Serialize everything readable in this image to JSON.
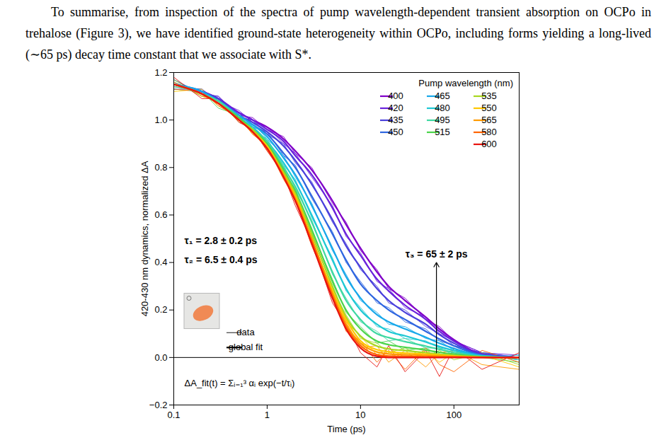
{
  "paragraph": "To summarise, from inspection of the spectra of pump wavelength-dependent transient absorption on OCPo in trehalose (Figure 3), we have identified ground-state heterogeneity within OCPo, including forms yielding a long-lived (∼65 ps) decay time constant that we associate with S*.",
  "chart_data": {
    "type": "line",
    "x_label": "Time (ps)",
    "y_label": "420-430 nm dynamics, normalized ΔA",
    "log": "x",
    "xlim": [
      0.1,
      500
    ],
    "xticks": [
      0.1,
      1,
      10,
      100
    ],
    "ylim": [
      -0.2,
      1.2
    ],
    "yticks": [
      {
        "value": -0.2,
        "label": "−0.2"
      },
      {
        "value": 0,
        "label": "0.0"
      },
      0.2,
      0.4,
      0.6,
      0.8,
      {
        "value": 1,
        "label": "1.0"
      },
      1.2
    ],
    "legend": "top-right",
    "legend_title": "Pump wavelength (nm)",
    "line_legend": [
      "data",
      "global fit"
    ],
    "x": [
      0.1,
      0.2,
      0.3,
      0.5,
      0.7,
      1,
      1.5,
      2,
      3,
      5,
      7,
      10,
      15,
      20,
      30,
      50,
      70,
      100,
      200,
      500
    ],
    "series": [
      {
        "name": "400",
        "color": "#8000c8",
        "values": [
          1.15,
          1.12,
          1.09,
          1.03,
          1.0,
          0.97,
          0.92,
          0.87,
          0.79,
          0.66,
          0.56,
          0.46,
          0.36,
          0.3,
          0.24,
          0.17,
          0.12,
          0.075,
          0.015,
          0
        ],
        "data": [
          1.17,
          1.11,
          1.1,
          1.02,
          1.01,
          0.96,
          0.93,
          0.86,
          0.8,
          0.65,
          0.57,
          0.45,
          0.37,
          0.29,
          0.25,
          0.16,
          0.13,
          0.07,
          0.02,
          0.0
        ]
      },
      {
        "name": "420",
        "color": "#6a22dc",
        "values": [
          1.15,
          1.12,
          1.09,
          1.03,
          1.0,
          0.96,
          0.91,
          0.85,
          0.77,
          0.63,
          0.52,
          0.43,
          0.33,
          0.28,
          0.22,
          0.16,
          0.11,
          0.069,
          0.014,
          0
        ],
        "data": [
          1.13,
          1.13,
          1.08,
          1.04,
          0.99,
          0.97,
          0.9,
          0.86,
          0.76,
          0.64,
          0.51,
          0.44,
          0.32,
          0.29,
          0.21,
          0.17,
          0.1,
          0.07,
          0.02,
          0.01
        ]
      },
      {
        "name": "435",
        "color": "#4a40dc",
        "values": [
          1.15,
          1.12,
          1.09,
          1.02,
          0.99,
          0.95,
          0.89,
          0.83,
          0.73,
          0.58,
          0.47,
          0.38,
          0.29,
          0.24,
          0.19,
          0.14,
          0.096,
          0.06,
          0.012,
          0
        ],
        "data": [
          1.16,
          1.11,
          1.1,
          1.01,
          1.0,
          0.94,
          0.9,
          0.82,
          0.74,
          0.57,
          0.48,
          0.37,
          0.3,
          0.23,
          0.2,
          0.13,
          0.1,
          0.05,
          0.02,
          -0.01
        ]
      },
      {
        "name": "450",
        "color": "#2f66e0",
        "values": [
          1.15,
          1.12,
          1.08,
          1.02,
          0.98,
          0.94,
          0.86,
          0.8,
          0.68,
          0.52,
          0.41,
          0.31,
          0.24,
          0.2,
          0.16,
          0.11,
          0.078,
          0.049,
          0.01,
          0
        ],
        "data": [
          1.14,
          1.13,
          1.07,
          1.03,
          0.97,
          0.95,
          0.85,
          0.81,
          0.67,
          0.53,
          0.4,
          0.32,
          0.23,
          0.21,
          0.15,
          0.12,
          0.07,
          0.05,
          0.02,
          0.0
        ]
      },
      {
        "name": "465",
        "color": "#18a8ea",
        "values": [
          1.15,
          1.12,
          1.08,
          1.02,
          0.98,
          0.93,
          0.84,
          0.77,
          0.64,
          0.46,
          0.34,
          0.25,
          0.18,
          0.15,
          0.12,
          0.085,
          0.06,
          0.038,
          0.008,
          0
        ],
        "data": [
          1.17,
          1.11,
          1.09,
          1.01,
          0.99,
          0.92,
          0.85,
          0.76,
          0.65,
          0.45,
          0.35,
          0.24,
          0.19,
          0.14,
          0.13,
          0.08,
          0.07,
          0.03,
          0.01,
          -0.01
        ]
      },
      {
        "name": "480",
        "color": "#1ec8d4",
        "values": [
          1.15,
          1.11,
          1.08,
          1.01,
          0.97,
          0.91,
          0.82,
          0.74,
          0.6,
          0.41,
          0.29,
          0.2,
          0.14,
          0.11,
          0.091,
          0.065,
          0.046,
          0.029,
          0.006,
          0
        ],
        "data": [
          1.13,
          1.12,
          1.07,
          1.02,
          0.96,
          0.92,
          0.81,
          0.75,
          0.59,
          0.42,
          0.28,
          0.21,
          0.13,
          0.12,
          0.08,
          0.07,
          0.04,
          0.03,
          0.0,
          0.01
        ]
      },
      {
        "name": "495",
        "color": "#3ed8a2",
        "values": [
          1.15,
          1.11,
          1.08,
          1.01,
          0.96,
          0.91,
          0.8,
          0.72,
          0.57,
          0.36,
          0.24,
          0.16,
          0.1,
          0.084,
          0.067,
          0.048,
          0.034,
          0.021,
          0.004,
          0
        ],
        "data": [
          1.16,
          1.1,
          1.09,
          1.0,
          0.97,
          0.9,
          0.81,
          0.71,
          0.58,
          0.35,
          0.25,
          0.15,
          0.11,
          0.07,
          0.08,
          0.04,
          0.04,
          0.01,
          0.01,
          -0.01
        ]
      },
      {
        "name": "515",
        "color": "#4cd44c",
        "values": [
          1.15,
          1.11,
          1.07,
          1.01,
          0.96,
          0.9,
          0.79,
          0.7,
          0.54,
          0.32,
          0.2,
          0.12,
          0.069,
          0.054,
          0.043,
          0.031,
          0.022,
          0.014,
          0.003,
          0
        ],
        "data": [
          1.14,
          1.12,
          1.05,
          1.02,
          0.95,
          0.91,
          0.78,
          0.71,
          0.53,
          0.33,
          0.19,
          0.13,
          0.06,
          0.07,
          0.03,
          0.04,
          0.01,
          0.02,
          0.0,
          -0.02
        ]
      },
      {
        "name": "535",
        "color": "#a8d820",
        "values": [
          1.15,
          1.11,
          1.07,
          1.0,
          0.96,
          0.89,
          0.78,
          0.69,
          0.52,
          0.3,
          0.17,
          0.09,
          0.048,
          0.036,
          0.029,
          0.02,
          0.014,
          0.009,
          0.002,
          0
        ],
        "data": [
          1.17,
          1.1,
          1.08,
          0.99,
          0.97,
          0.88,
          0.79,
          0.68,
          0.53,
          0.29,
          0.18,
          0.08,
          0.06,
          0.02,
          0.04,
          0.0,
          0.03,
          -0.01,
          0.02,
          -0.03
        ]
      },
      {
        "name": "550",
        "color": "#ffc800",
        "values": [
          1.15,
          1.11,
          1.07,
          1.0,
          0.95,
          0.89,
          0.77,
          0.68,
          0.5,
          0.28,
          0.16,
          0.07,
          0.033,
          0.024,
          0.019,
          0.014,
          0.01,
          0.006,
          0.001,
          0
        ],
        "data": [
          1.12,
          1.13,
          1.06,
          1.01,
          0.94,
          0.9,
          0.76,
          0.69,
          0.49,
          0.29,
          0.15,
          0.09,
          0.01,
          0.04,
          0.0,
          0.03,
          -0.02,
          0.02,
          0.01,
          -0.04
        ]
      },
      {
        "name": "565",
        "color": "#ff9a00",
        "values": [
          1.15,
          1.11,
          1.07,
          1.0,
          0.95,
          0.88,
          0.77,
          0.67,
          0.5,
          0.27,
          0.14,
          0.06,
          0.023,
          0.015,
          0.012,
          0.009,
          0.006,
          0.004,
          0.001,
          0
        ],
        "data": [
          1.16,
          1.1,
          1.08,
          1.0,
          0.96,
          0.87,
          0.78,
          0.66,
          0.51,
          0.26,
          0.15,
          0.04,
          0.05,
          -0.02,
          0.03,
          -0.04,
          0.02,
          0.03,
          -0.03,
          -0.05
        ]
      },
      {
        "name": "580",
        "color": "#ff6400",
        "values": [
          1.15,
          1.11,
          1.07,
          1.0,
          0.95,
          0.88,
          0.76,
          0.66,
          0.49,
          0.26,
          0.13,
          0.05,
          0.012,
          0.006,
          0.005,
          0.003,
          0.002,
          0.002,
          0,
          0
        ],
        "data": [
          1.13,
          1.12,
          1.06,
          1.01,
          0.94,
          0.89,
          0.75,
          0.67,
          0.47,
          0.27,
          0.11,
          0.07,
          -0.02,
          0.03,
          -0.05,
          0.04,
          -0.03,
          -0.06,
          0.03,
          -0.02
        ]
      },
      {
        "name": "600",
        "color": "#e81410",
        "values": [
          1.15,
          1.11,
          1.07,
          1.0,
          0.95,
          0.88,
          0.76,
          0.66,
          0.48,
          0.25,
          0.12,
          0.04,
          0.005,
          0,
          0,
          0,
          0,
          0,
          0,
          0
        ],
        "data": [
          1.18,
          1.09,
          1.09,
          0.99,
          0.96,
          0.87,
          0.77,
          0.64,
          0.49,
          0.23,
          0.14,
          0.02,
          -0.04,
          0.05,
          -0.06,
          0.03,
          -0.08,
          0.04,
          -0.05,
          0.02
        ]
      }
    ],
    "annotations": [
      {
        "text": "τ₁ = 2.8 ± 0.2 ps",
        "x": 0.13,
        "y": 0.49
      },
      {
        "text": "τ₂ = 6.5 ± 0.4 ps",
        "x": 0.13,
        "y": 0.41
      },
      {
        "text": "ΔA_fit(t) = Σᵢ₌₁³ αᵢ exp(−t/τᵢ)",
        "x": 0.13,
        "y": -0.11
      }
    ],
    "arrow_annotation": {
      "text": "τ₃ = 65 ± 2 ps",
      "x": 65,
      "y": 0.4,
      "y_from": 0.02
    }
  }
}
